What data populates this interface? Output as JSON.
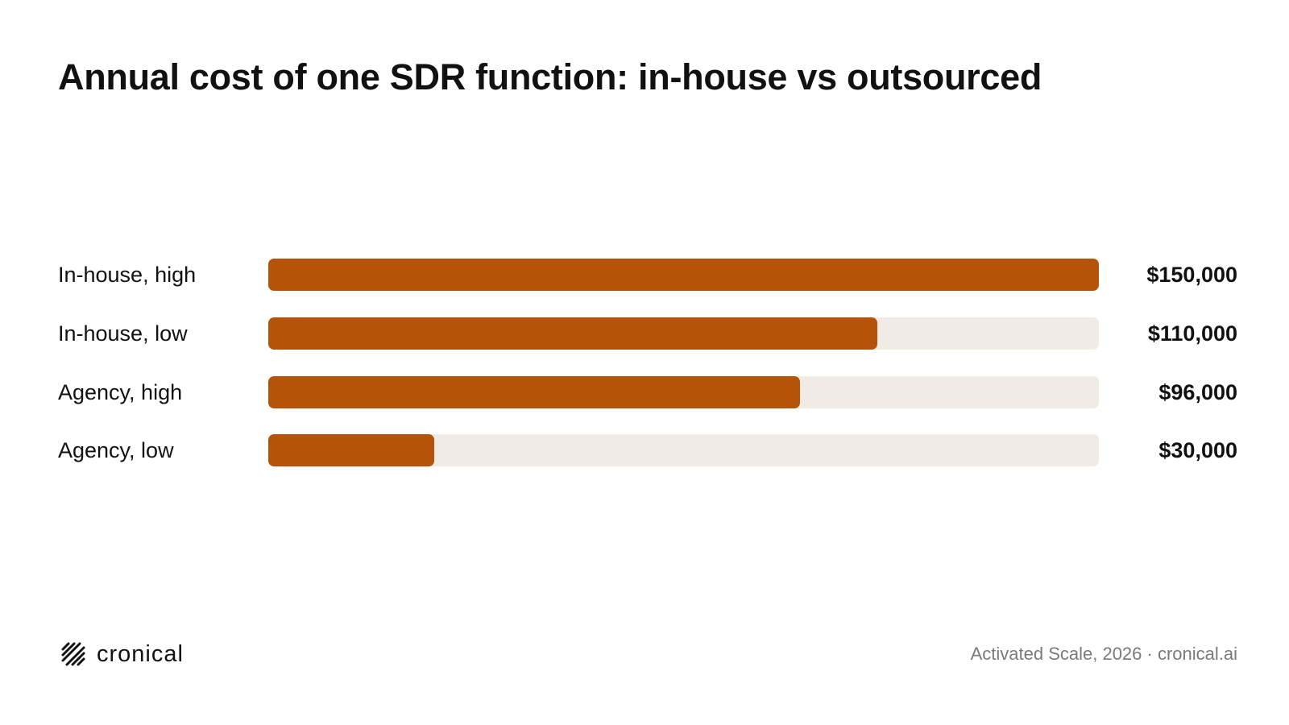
{
  "title": "Annual cost of one SDR function: in-house vs outsourced",
  "chart_data": {
    "type": "bar",
    "orientation": "horizontal",
    "title": "Annual cost of one SDR function: in-house vs outsourced",
    "categories": [
      "In-house, high",
      "In-house, low",
      "Agency, high",
      "Agency, low"
    ],
    "values": [
      150000,
      110000,
      96000,
      30000
    ],
    "value_labels": [
      "$150,000",
      "$110,000",
      "$96,000",
      "$30,000"
    ],
    "xlim": [
      0,
      150000
    ],
    "grid": false,
    "legend": "none"
  },
  "footer": {
    "logo_text": "cronical",
    "source": "Activated Scale, 2026 · cronical.ai"
  },
  "colors": {
    "bar": "#b5530b",
    "track": "#f0ebe4",
    "text": "#111111",
    "muted_text": "#7a7a7a"
  },
  "icons": {
    "logo": "cronical-logo-icon"
  }
}
